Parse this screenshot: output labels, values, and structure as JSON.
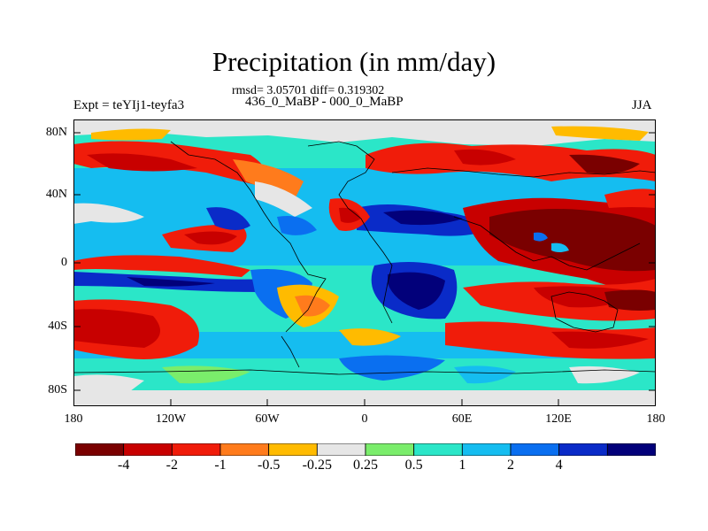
{
  "title": "Precipitation (in mm/day)",
  "stats": "rmsd= 3.05701 diff= 0.319302",
  "period": "436_0_MaBP - 000_0_MaBP",
  "expt": "Expt = teYIj1-teyfa3",
  "season": "JJA",
  "lat_labels": [
    "80N",
    "40N",
    "0",
    "40S",
    "80S"
  ],
  "lon_labels": [
    "180",
    "120W",
    "60W",
    "0",
    "60E",
    "120E",
    "180"
  ],
  "colorbar": {
    "colors": [
      "#7a0000",
      "#c80000",
      "#f01c0a",
      "#ff7b1c",
      "#ffbb00",
      "#e6e6e6",
      "#7aed6b",
      "#2be6c8",
      "#15bdf0",
      "#0a6ff0",
      "#0a2bc8",
      "#02007a"
    ],
    "labels": [
      "-4",
      "-2",
      "-1",
      "-0.5",
      "-0.25",
      "0.25",
      "0.5",
      "1",
      "2",
      "4"
    ]
  }
}
